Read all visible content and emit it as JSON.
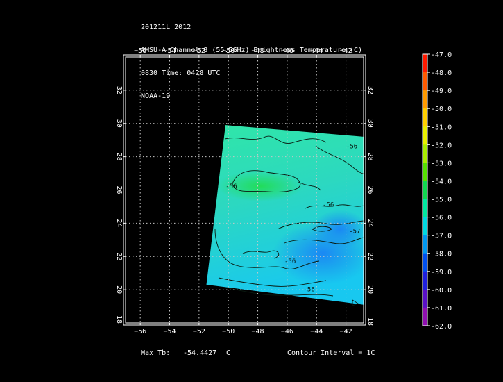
{
  "header": {
    "line1": "201211L 2012",
    "line2": "AMSU-A Channel 8 (55.5GHz) Brightness Temperature (C)",
    "line3": "0830 Time: 0428 UTC",
    "line4": "NOAA-19"
  },
  "map": {
    "lon_range": [
      -57,
      -40.8
    ],
    "lat_range": [
      18,
      34
    ],
    "lon_ticks": [
      -56,
      -54,
      -52,
      -50,
      -48,
      -46,
      -44,
      -42
    ],
    "lat_ticks": [
      20,
      22,
      24,
      26,
      28,
      30,
      32
    ],
    "lon_tick_labels": [
      "−56",
      "−54",
      "−52",
      "−50",
      "−48",
      "−46",
      "−44",
      "−42"
    ],
    "lat_tick_labels": [
      "20",
      "22",
      "24",
      "26",
      "28",
      "30",
      "32"
    ],
    "lat_edge_label": "18",
    "swath_corners_lonlat": [
      [
        -50.2,
        29.9
      ],
      [
        -40.8,
        29.2
      ],
      [
        -40.8,
        19.1
      ],
      [
        -51.5,
        20.3
      ]
    ],
    "contour_labels": [
      {
        "text": "-56",
        "lon": -49.8,
        "lat": 26.1
      },
      {
        "text": "-56",
        "lon": -41.6,
        "lat": 28.5
      },
      {
        "text": "-56",
        "lon": -43.2,
        "lat": 25.0
      },
      {
        "text": "-57",
        "lon": -41.4,
        "lat": 23.4
      },
      {
        "text": "-56",
        "lon": -45.8,
        "lat": 21.6
      },
      {
        "text": "-56",
        "lon": -44.5,
        "lat": 19.9
      }
    ]
  },
  "colorbar": {
    "ticks": [
      "-47.0",
      "-48.0",
      "-49.0",
      "-50.0",
      "-51.0",
      "-52.0",
      "-53.0",
      "-54.0",
      "-55.0",
      "-56.0",
      "-57.0",
      "-58.0",
      "-59.0",
      "-60.0",
      "-61.0",
      "-62.0"
    ],
    "colors": [
      "#ff1a00",
      "#ff5a00",
      "#ff9a00",
      "#ffd000",
      "#e8f000",
      "#a8ee00",
      "#55e000",
      "#10d850",
      "#00e8a0",
      "#00d8e0",
      "#0098f0",
      "#0050f0",
      "#2020e0",
      "#5a10c8",
      "#9010b0",
      "#ffffff"
    ]
  },
  "footer": {
    "max_label": "Max Tb:",
    "max_value": "-54.4427",
    "max_unit": "C",
    "contour": "Contour Interval = 1C"
  }
}
